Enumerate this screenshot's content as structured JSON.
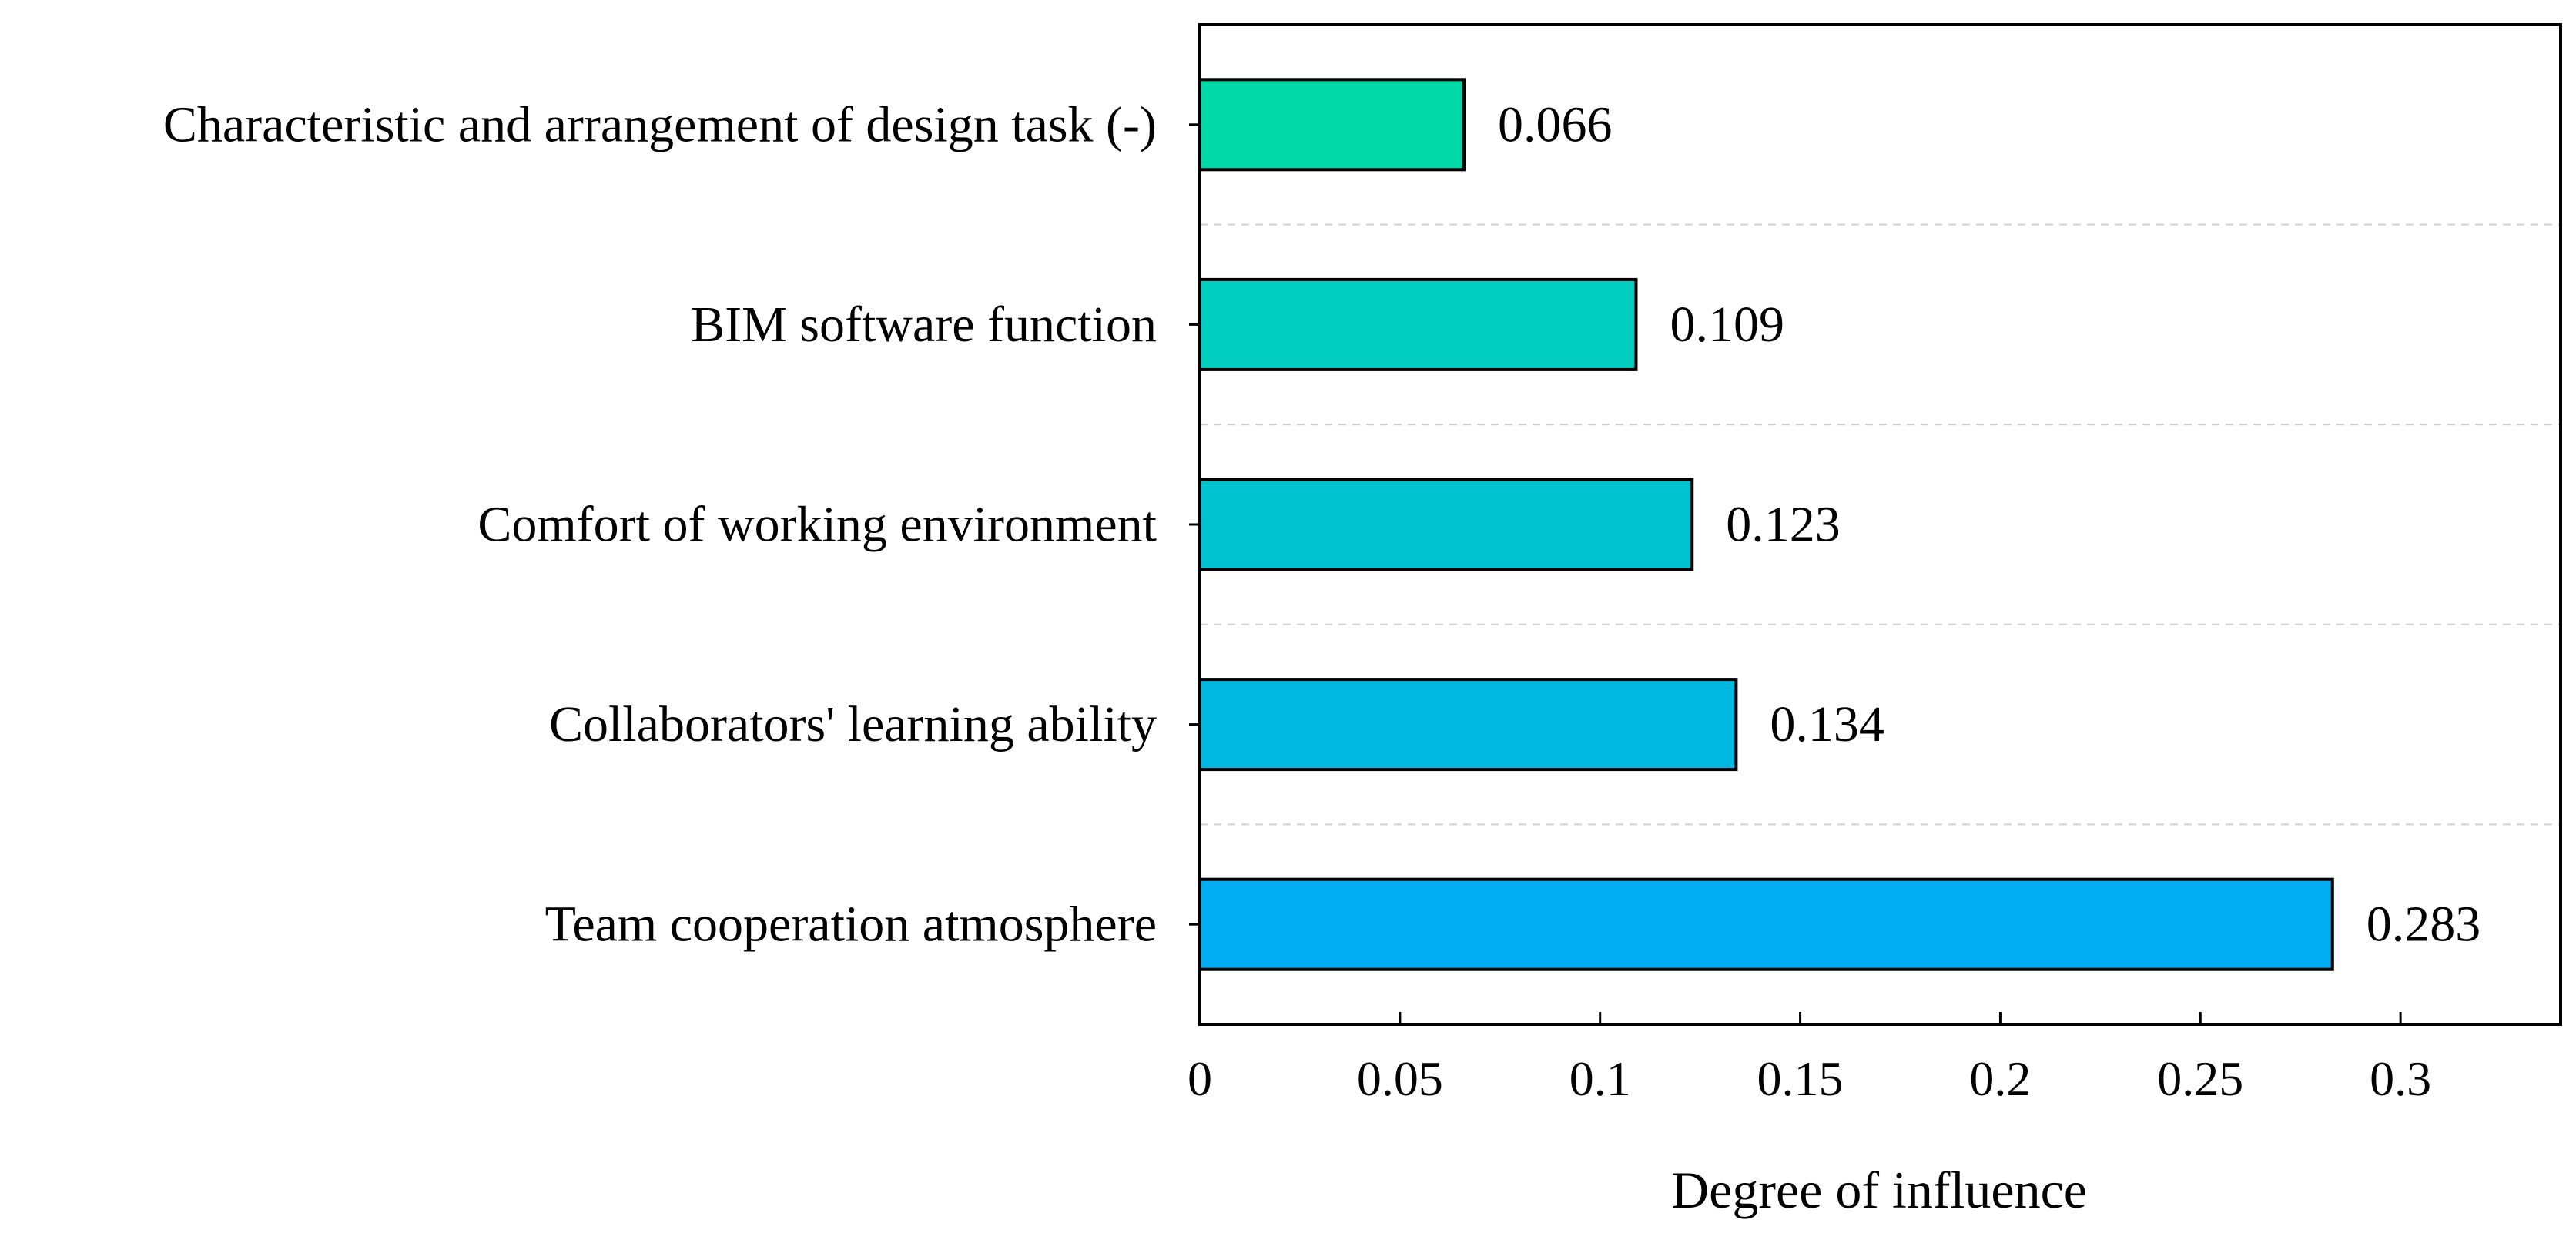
{
  "chart_data": {
    "type": "bar",
    "orientation": "horizontal",
    "title": "",
    "xlabel": "Degree of influence",
    "ylabel": "",
    "categories": [
      "Characteristic and arrangement of design task (-)",
      "BIM software function",
      "Comfort of working environment",
      "Collaborators' learning ability",
      "Team cooperation atmosphere"
    ],
    "values": [
      0.066,
      0.109,
      0.123,
      0.134,
      0.283
    ],
    "value_labels": [
      "0.066",
      "0.109",
      "0.123",
      "0.134",
      "0.283"
    ],
    "bar_colors": [
      "#00d9a6",
      "#00cfc0",
      "#00c3d2",
      "#00b7e0",
      "#00adf2"
    ],
    "xlim": [
      0,
      0.34
    ],
    "xticks": [
      0,
      0.05,
      0.1,
      0.15,
      0.2,
      0.25,
      0.3
    ],
    "xtick_labels": [
      "0",
      "0.05",
      "0.1",
      "0.15",
      "0.2",
      "0.25",
      "0.3"
    ],
    "grid": "horizontal dashed separators",
    "legend": "none"
  }
}
